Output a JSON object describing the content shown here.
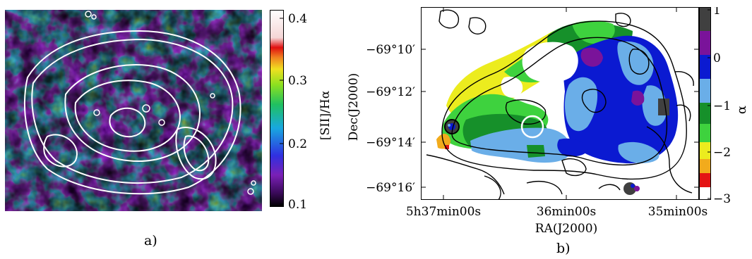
{
  "panel_a": {
    "caption": "a)",
    "colorbar": {
      "label": "[SII]/Hα",
      "ticks": [
        "0.4",
        "0.3",
        "0.2",
        "0.1"
      ]
    }
  },
  "panel_b": {
    "caption": "b)",
    "xlabel": "RA(J2000)",
    "ylabel": "Dec(J2000)",
    "xticks": [
      "5h37min00s",
      "36min00s",
      "35min00s"
    ],
    "yticks": [
      "−69°10′",
      "−69°12′",
      "−69°14′",
      "−69°16′"
    ],
    "colorbar": {
      "label": "α",
      "ticks": [
        "1",
        "0",
        "−1",
        "−2",
        "−3"
      ]
    }
  },
  "colors": {
    "purple": "#7a139a",
    "blue": "#0b1ad1",
    "lightblue": "#6aaee8",
    "darkgreen": "#16902a",
    "green": "#3ed23e",
    "yellow": "#ecec1e",
    "orange": "#f2ab1c",
    "red": "#e41414",
    "gray": "#404040"
  }
}
